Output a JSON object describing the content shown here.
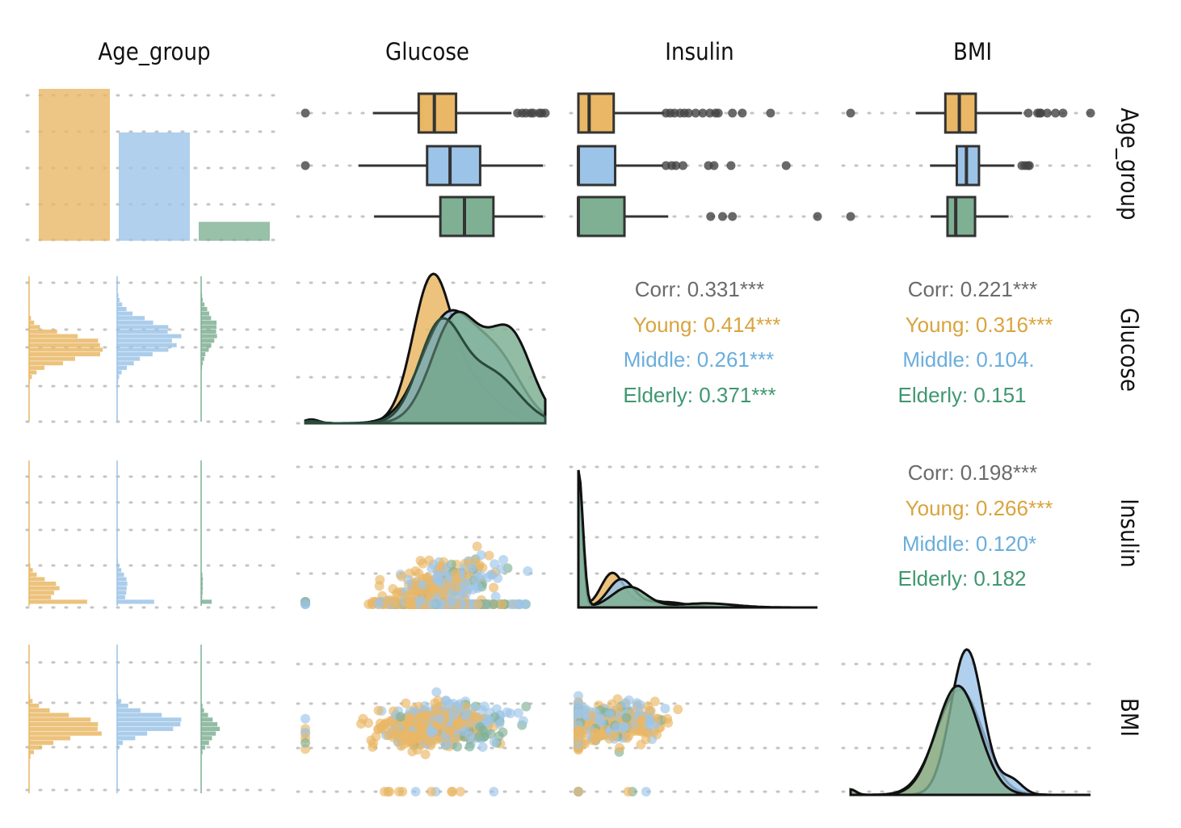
{
  "chart_data": {
    "type": "scatter",
    "variables": [
      "Age_group",
      "Glucose",
      "Insulin",
      "BMI"
    ],
    "groups": [
      {
        "name": "Young",
        "color": "#E9B765"
      },
      {
        "name": "Middle",
        "color": "#9CC4E8"
      },
      {
        "name": "Elderly",
        "color": "#7FB094"
      }
    ],
    "ranges": {
      "Glucose": [
        0,
        199
      ],
      "Insulin": [
        0,
        846
      ],
      "BMI": [
        0,
        67.1
      ]
    },
    "age_group_counts": [
      418,
      298,
      52
    ],
    "boxplots": {
      "Glucose": [
        {
          "group": "Young",
          "min": 56,
          "q1": 94,
          "median": 107,
          "q3": 125,
          "max": 171,
          "outliers": [
            0,
            176,
            180,
            183,
            187,
            189,
            194,
            196,
            199
          ]
        },
        {
          "group": "Middle",
          "min": 44,
          "q1": 101,
          "median": 120,
          "q3": 145,
          "max": 197,
          "outliers": [
            0
          ]
        },
        {
          "group": "Elderly",
          "min": 57,
          "q1": 112,
          "median": 132,
          "q3": 156,
          "max": 197,
          "outliers": []
        }
      ],
      "Insulin": [
        {
          "group": "Young",
          "min": 0,
          "q1": 0,
          "median": 38,
          "q3": 125,
          "max": 305,
          "outliers": [
            310,
            325,
            340,
            360,
            375,
            390,
            415,
            440,
            465,
            485,
            495,
            545,
            580,
            680
          ]
        },
        {
          "group": "Middle",
          "min": 0,
          "q1": 0,
          "median": 0,
          "q3": 130,
          "max": 300,
          "outliers": [
            310,
            330,
            345,
            370,
            460,
            480,
            540,
            735
          ]
        },
        {
          "group": "Elderly",
          "min": 0,
          "q1": 0,
          "median": 0,
          "q3": 163,
          "max": 318,
          "outliers": [
            468,
            510,
            545,
            846
          ]
        }
      ],
      "BMI": [
        {
          "group": "Young",
          "min": 18.2,
          "q1": 26.5,
          "median": 30.4,
          "q3": 35.0,
          "max": 47.9,
          "outliers": [
            0,
            49.7,
            52.3,
            52.9,
            53.2,
            55.0,
            57.3,
            59.4,
            67.1
          ]
        },
        {
          "group": "Middle",
          "min": 22.2,
          "q1": 29.7,
          "median": 32.4,
          "q3": 35.9,
          "max": 45.8,
          "outliers": [
            47.9,
            48.8,
            49.6,
            50.0
          ]
        },
        {
          "group": "Elderly",
          "min": 22.4,
          "q1": 27.1,
          "median": 29.4,
          "q3": 34.8,
          "max": 44.2,
          "outliers": [
            0
          ]
        }
      ]
    },
    "correlations": [
      {
        "pair": "Glucose-Insulin",
        "overall": "Corr: 0.331***",
        "Young": "Young: 0.414***",
        "Middle": "Middle: 0.261***",
        "Elderly": "Elderly: 0.371***"
      },
      {
        "pair": "Glucose-BMI",
        "overall": "Corr: 0.221***",
        "Young": "Young: 0.316***",
        "Middle": "Middle: 0.104.",
        "Elderly": "Elderly: 0.151"
      },
      {
        "pair": "Insulin-BMI",
        "overall": "Corr: 0.198***",
        "Young": "Young: 0.266***",
        "Middle": "Middle: 0.120*",
        "Elderly": "Elderly: 0.182"
      }
    ],
    "grid": "dotted",
    "legend": "none"
  }
}
